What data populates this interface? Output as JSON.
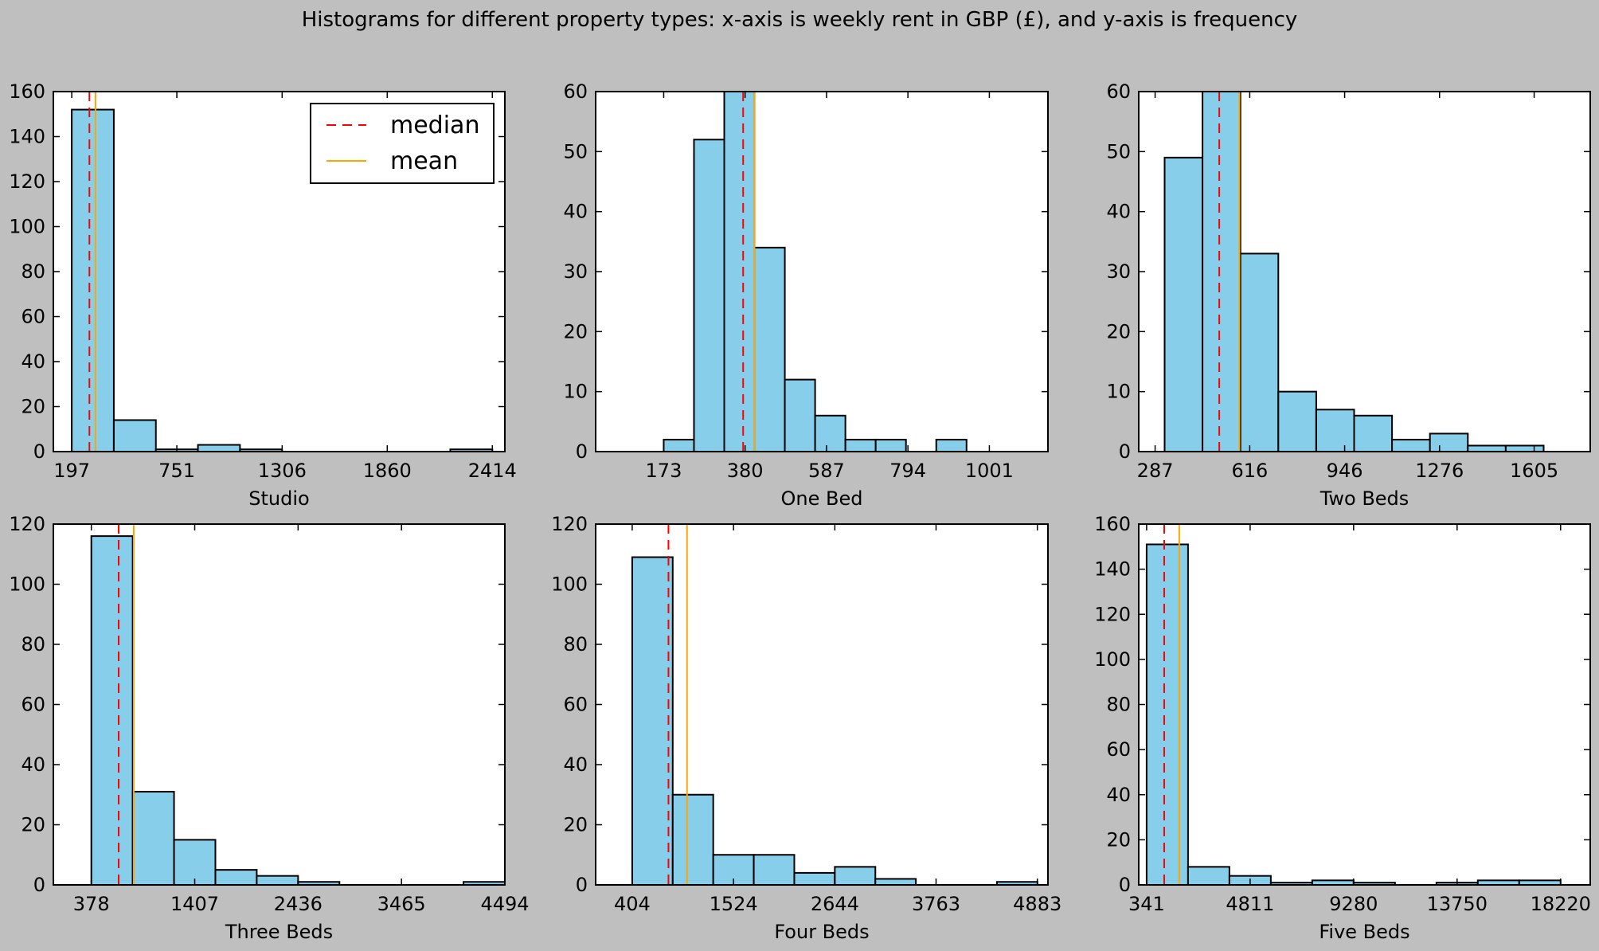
{
  "figure_title": "Histograms for different property types: x-axis is weekly rent in GBP (£), and y-axis is frequency",
  "legend": {
    "median_label": "median",
    "mean_label": "mean",
    "placement": "upper-right of first subplot"
  },
  "colors": {
    "bar_fill": "#87ceeb",
    "bar_edge": "#000000",
    "median": "#ff0000",
    "mean": "#ffa500",
    "background": "#bfbfbf"
  },
  "chart_data": [
    {
      "type": "bar",
      "title": "",
      "xlabel": "Studio",
      "ylabel": "",
      "xlim": [
        100,
        2480
      ],
      "ylim": [
        0,
        160
      ],
      "xticks": [
        197,
        751,
        1306,
        1860,
        2414
      ],
      "yticks": [
        0,
        20,
        40,
        60,
        80,
        100,
        120,
        140,
        160
      ],
      "bin_width": 221.7,
      "bin_starts": [
        197,
        418.7,
        640.4,
        862.1,
        1083.8,
        1305.5,
        1527.2,
        1748.9,
        1970.6,
        2192.3
      ],
      "values": [
        152,
        14,
        1,
        3,
        1,
        0,
        0,
        0,
        0,
        1
      ],
      "median": 290,
      "mean": 322,
      "show_legend": true
    },
    {
      "type": "bar",
      "title": "",
      "xlabel": "One Bed",
      "ylabel": "",
      "xlim": [
        0,
        1150
      ],
      "ylim": [
        0,
        60
      ],
      "xticks": [
        173,
        380,
        587,
        794,
        1001
      ],
      "yticks": [
        0,
        10,
        20,
        30,
        40,
        50,
        60
      ],
      "bin_width": 77,
      "bin_starts": [
        173,
        250,
        327,
        404,
        481,
        558,
        635,
        712,
        789,
        866,
        943
      ],
      "values": [
        2,
        52,
        60,
        34,
        12,
        6,
        2,
        2,
        0,
        2,
        0
      ],
      "median": 375,
      "mean": 404,
      "show_legend": false
    },
    {
      "type": "bar",
      "title": "",
      "xlabel": "Two Beds",
      "ylabel": "",
      "xlim": [
        230,
        1800
      ],
      "ylim": [
        0,
        60
      ],
      "xticks": [
        287,
        616,
        946,
        1276,
        1605
      ],
      "yticks": [
        0,
        10,
        20,
        30,
        40,
        50,
        60
      ],
      "bin_width": 131.8,
      "bin_starts": [
        320,
        451.8,
        583.6,
        715.4,
        847.2,
        979,
        1110.8,
        1242.6,
        1374.4,
        1506.2
      ],
      "values": [
        49,
        60,
        33,
        10,
        7,
        6,
        2,
        3,
        1,
        1
      ],
      "median": 510,
      "mean": 580,
      "show_legend": false
    },
    {
      "type": "bar",
      "title": "",
      "xlabel": "Three Beds",
      "ylabel": "",
      "xlim": [
        0,
        4494
      ],
      "ylim": [
        0,
        120
      ],
      "xticks": [
        378,
        1407,
        2436,
        3465,
        4494
      ],
      "yticks": [
        0,
        20,
        40,
        60,
        80,
        100,
        120
      ],
      "bin_width": 411.6,
      "bin_starts": [
        378,
        789.6,
        1201.2,
        1612.8,
        2024.4,
        2436,
        2847.6,
        3259.2,
        3670.8,
        4082.4
      ],
      "values": [
        116,
        31,
        15,
        5,
        3,
        1,
        0,
        0,
        0,
        1
      ],
      "median": 650,
      "mean": 800,
      "show_legend": false
    },
    {
      "type": "bar",
      "title": "",
      "xlabel": "Four Beds",
      "ylabel": "",
      "xlim": [
        0,
        5000
      ],
      "ylim": [
        0,
        120
      ],
      "xticks": [
        404,
        1524,
        2644,
        3763,
        4883
      ],
      "yticks": [
        0,
        20,
        40,
        60,
        80,
        100,
        120
      ],
      "bin_width": 448,
      "bin_starts": [
        404,
        852,
        1300,
        1748,
        2196,
        2644,
        3092,
        3540,
        3988,
        4436
      ],
      "values": [
        109,
        30,
        10,
        10,
        4,
        6,
        2,
        0,
        0,
        1
      ],
      "median": 805,
      "mean": 1010,
      "show_legend": false
    },
    {
      "type": "bar",
      "title": "",
      "xlabel": "Five Beds",
      "ylabel": "",
      "xlim": [
        0,
        19500
      ],
      "ylim": [
        0,
        160
      ],
      "xticks": [
        341,
        4811,
        9280,
        13750,
        18220
      ],
      "yticks": [
        0,
        20,
        40,
        60,
        80,
        100,
        120,
        140,
        160
      ],
      "bin_width": 1787.9,
      "bin_starts": [
        341,
        2128.9,
        3916.8,
        5704.7,
        7492.6,
        9280.5,
        11068.4,
        12856.3,
        14644.2,
        16432.1
      ],
      "values": [
        151,
        8,
        4,
        1,
        2,
        1,
        0,
        1,
        2,
        2
      ],
      "median": 1100,
      "mean": 1750,
      "show_legend": false
    }
  ]
}
